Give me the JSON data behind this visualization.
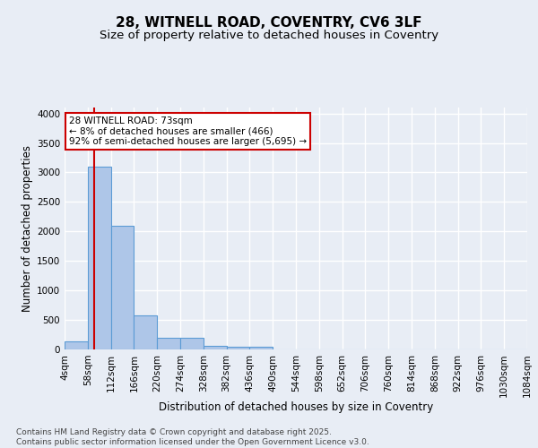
{
  "title": "28, WITNELL ROAD, COVENTRY, CV6 3LF",
  "subtitle": "Size of property relative to detached houses in Coventry",
  "xlabel": "Distribution of detached houses by size in Coventry",
  "ylabel": "Number of detached properties",
  "footer_line1": "Contains HM Land Registry data © Crown copyright and database right 2025.",
  "footer_line2": "Contains public sector information licensed under the Open Government Licence v3.0.",
  "bar_edges": [
    4,
    58,
    112,
    166,
    220,
    274,
    328,
    382,
    436,
    490,
    544,
    598,
    652,
    706,
    760,
    814,
    868,
    922,
    976,
    1030,
    1084
  ],
  "bar_heights": [
    130,
    3100,
    2100,
    570,
    200,
    190,
    60,
    50,
    40,
    0,
    0,
    0,
    0,
    0,
    0,
    0,
    0,
    0,
    0,
    0
  ],
  "bar_color": "#aec6e8",
  "bar_edge_color": "#5b9bd5",
  "property_size": 73,
  "vline_color": "#cc0000",
  "annotation_text": "28 WITNELL ROAD: 73sqm\n← 8% of detached houses are smaller (466)\n92% of semi-detached houses are larger (5,695) →",
  "annotation_box_color": "#ffffff",
  "annotation_box_edge": "#cc0000",
  "ylim": [
    0,
    4100
  ],
  "yticks": [
    0,
    500,
    1000,
    1500,
    2000,
    2500,
    3000,
    3500,
    4000
  ],
  "bg_color": "#e8edf5",
  "plot_bg_color": "#e8edf5",
  "grid_color": "#ffffff",
  "title_fontsize": 11,
  "subtitle_fontsize": 9.5,
  "axis_label_fontsize": 8.5,
  "tick_fontsize": 7.5,
  "footer_fontsize": 6.5,
  "annotation_fontsize": 7.5
}
